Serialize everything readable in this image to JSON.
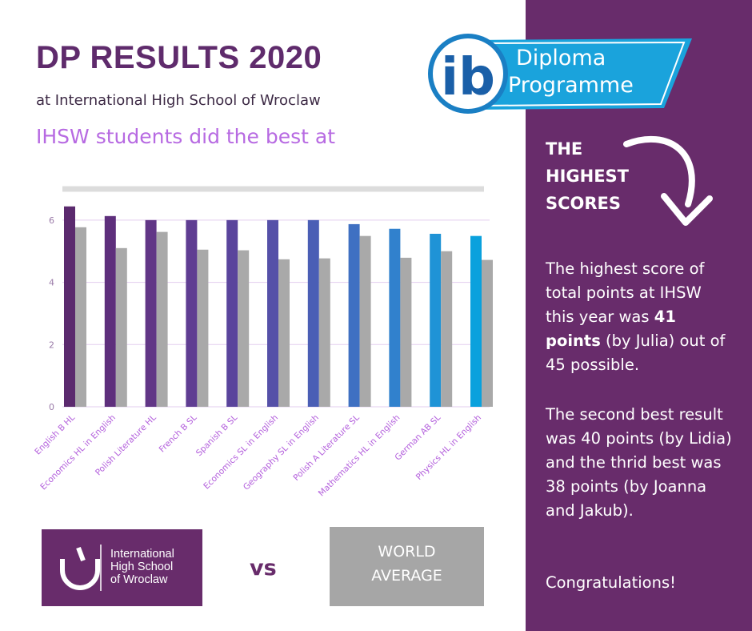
{
  "header": {
    "title": "DP RESULTS 2020",
    "subtitle": "at International High School of Wroclaw",
    "lead": "IHSW students did the best at"
  },
  "ib_logo": {
    "mark": "ib",
    "line1": "Diploma",
    "line2": "Programme"
  },
  "chart_data": {
    "type": "bar",
    "categories": [
      "English B HL",
      "Economics HL in English",
      "Polish Literature HL",
      "French B SL",
      "Spanish B SL",
      "Economics SL in English",
      "Geography SL in English",
      "Polish A Literature SL",
      "Mathematics HL in English",
      "German AB SL",
      "Physics HL in English"
    ],
    "series": [
      {
        "name": "International High School of Wroclaw",
        "colors": [
          "#5b2a6e",
          "#5e2f7c",
          "#613686",
          "#5f3d92",
          "#5a449c",
          "#5550a8",
          "#4a5eb5",
          "#3f70c2",
          "#3181cd",
          "#1f93d6",
          "#0aa1dd"
        ],
        "values": [
          6.44,
          6.13,
          6.0,
          6.0,
          6.0,
          6.0,
          6.0,
          5.87,
          5.72,
          5.56,
          5.49
        ]
      },
      {
        "name": "WORLD AVERAGE",
        "color": "#a9a9a9",
        "values": [
          5.77,
          5.1,
          5.62,
          5.05,
          5.03,
          4.74,
          4.77,
          5.49,
          4.79,
          5.0,
          4.72
        ]
      }
    ],
    "ylim": [
      0,
      7
    ],
    "yticks": [
      0,
      2,
      4,
      6
    ],
    "grid": true
  },
  "sidebar": {
    "heading": [
      "THE",
      "HIGHEST",
      "SCORES"
    ],
    "paragraph1": {
      "before": "The highest score of total points at IHSW this year was ",
      "bold": "41 points",
      "after": " (by Julia) out of 45 possible."
    },
    "paragraph2": "The second best result was 40 points (by Lidia) and the thrid best was 38 points (by Joanna and Jakub).",
    "paragraph3": "Congratulations!"
  },
  "footer": {
    "ihsw_lines": [
      "International",
      "High School",
      "of Wroclaw"
    ],
    "vs": "vs",
    "world_lines": [
      "WORLD",
      "AVERAGE"
    ]
  }
}
